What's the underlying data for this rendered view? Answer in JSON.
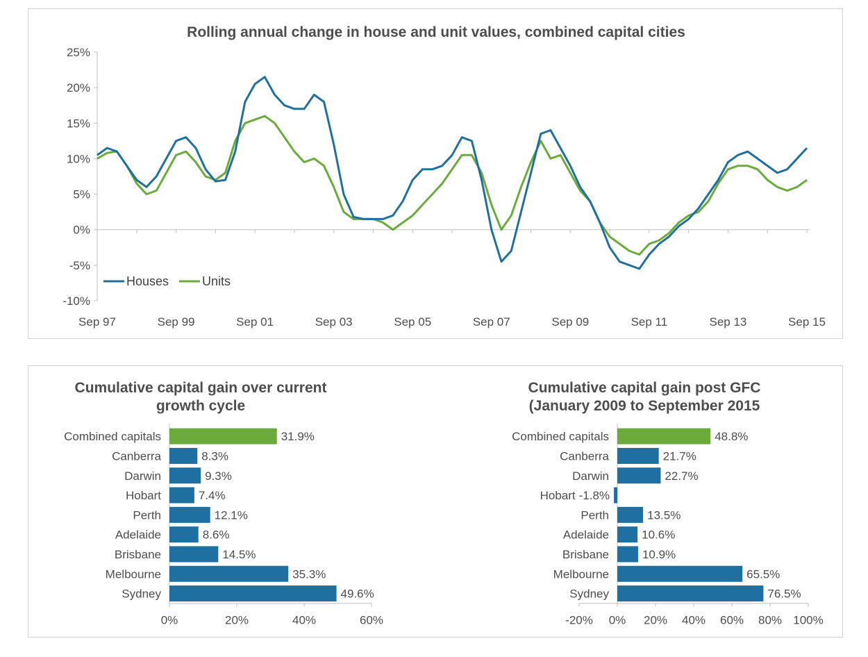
{
  "colors": {
    "houses": "#1f6fa0",
    "units": "#6aab3c",
    "bar": "#1f6fa0",
    "bar_highlight": "#6aab3c",
    "axis": "#bfbfbf"
  },
  "chart_data": [
    {
      "type": "line",
      "title": "Rolling annual change in house and unit values, combined capital cities",
      "xlabel": "",
      "ylabel": "",
      "x_tick_labels": [
        "Sep 97",
        "Sep 99",
        "Sep 01",
        "Sep 03",
        "Sep 05",
        "Sep 07",
        "Sep 09",
        "Sep 11",
        "Sep 13",
        "Sep 15"
      ],
      "y_tick_labels": [
        "25%",
        "20%",
        "15%",
        "10%",
        "5%",
        "0%",
        "-5%",
        "-10%"
      ],
      "ylim": [
        -10,
        25
      ],
      "xlim": [
        1997.75,
        2015.75
      ],
      "legend": "bottom-left",
      "grid": false,
      "series": [
        {
          "name": "Houses",
          "x": [
            1997.75,
            1998.0,
            1998.25,
            1998.5,
            1998.75,
            1999.0,
            1999.25,
            1999.5,
            1999.75,
            2000.0,
            2000.25,
            2000.5,
            2000.75,
            2001.0,
            2001.25,
            2001.5,
            2001.75,
            2002.0,
            2002.25,
            2002.5,
            2002.75,
            2003.0,
            2003.25,
            2003.5,
            2003.75,
            2004.0,
            2004.25,
            2004.5,
            2004.75,
            2005.0,
            2005.25,
            2005.5,
            2005.75,
            2006.0,
            2006.25,
            2006.5,
            2006.75,
            2007.0,
            2007.25,
            2007.5,
            2007.75,
            2008.0,
            2008.25,
            2008.5,
            2008.75,
            2009.0,
            2009.25,
            2009.5,
            2009.75,
            2010.0,
            2010.25,
            2010.5,
            2010.75,
            2011.0,
            2011.25,
            2011.5,
            2011.75,
            2012.0,
            2012.25,
            2012.5,
            2012.75,
            2013.0,
            2013.25,
            2013.5,
            2013.75,
            2014.0,
            2014.25,
            2014.5,
            2014.75,
            2015.0,
            2015.25,
            2015.5,
            2015.75
          ],
          "values": [
            10.5,
            11.5,
            11.0,
            9.0,
            7.0,
            6.0,
            7.5,
            10.0,
            12.5,
            13.0,
            11.5,
            8.5,
            6.8,
            7.0,
            11.0,
            18.0,
            20.5,
            21.5,
            19.0,
            17.5,
            17.0,
            17.0,
            19.0,
            18.0,
            12.0,
            5.0,
            1.8,
            1.5,
            1.5,
            1.5,
            2.0,
            4.0,
            7.0,
            8.5,
            8.5,
            9.0,
            10.5,
            13.0,
            12.5,
            7.0,
            0.0,
            -4.5,
            -3.0,
            2.5,
            8.0,
            13.5,
            14.0,
            11.5,
            9.0,
            6.0,
            4.0,
            1.0,
            -2.5,
            -4.5,
            -5.0,
            -5.5,
            -3.5,
            -2.0,
            -1.0,
            0.5,
            1.5,
            3.0,
            5.0,
            7.0,
            9.5,
            10.5,
            11.0,
            10.0,
            9.0,
            8.0,
            8.5,
            10.0,
            11.5
          ]
        },
        {
          "name": "Units",
          "x": [
            1997.75,
            1998.0,
            1998.25,
            1998.5,
            1998.75,
            1999.0,
            1999.25,
            1999.5,
            1999.75,
            2000.0,
            2000.25,
            2000.5,
            2000.75,
            2001.0,
            2001.25,
            2001.5,
            2001.75,
            2002.0,
            2002.25,
            2002.5,
            2002.75,
            2003.0,
            2003.25,
            2003.5,
            2003.75,
            2004.0,
            2004.25,
            2004.5,
            2004.75,
            2005.0,
            2005.25,
            2005.5,
            2005.75,
            2006.0,
            2006.25,
            2006.5,
            2006.75,
            2007.0,
            2007.25,
            2007.5,
            2007.75,
            2008.0,
            2008.25,
            2008.5,
            2008.75,
            2009.0,
            2009.25,
            2009.5,
            2009.75,
            2010.0,
            2010.25,
            2010.5,
            2010.75,
            2011.0,
            2011.25,
            2011.5,
            2011.75,
            2012.0,
            2012.25,
            2012.5,
            2012.75,
            2013.0,
            2013.25,
            2013.5,
            2013.75,
            2014.0,
            2014.25,
            2014.5,
            2014.75,
            2015.0,
            2015.25,
            2015.5,
            2015.75
          ],
          "values": [
            10.0,
            10.8,
            11.0,
            9.0,
            6.5,
            5.0,
            5.5,
            8.0,
            10.5,
            11.0,
            9.5,
            7.5,
            7.0,
            8.0,
            12.5,
            15.0,
            15.5,
            16.0,
            15.0,
            13.0,
            11.0,
            9.5,
            10.0,
            9.0,
            6.0,
            2.5,
            1.5,
            1.5,
            1.5,
            1.0,
            0.0,
            1.0,
            2.0,
            3.5,
            5.0,
            6.5,
            8.5,
            10.5,
            10.5,
            8.0,
            3.5,
            0.0,
            2.0,
            6.0,
            9.5,
            12.5,
            10.0,
            10.5,
            8.0,
            5.5,
            4.0,
            1.0,
            -1.0,
            -2.0,
            -3.0,
            -3.5,
            -2.0,
            -1.5,
            -0.5,
            1.0,
            2.0,
            2.5,
            4.0,
            6.5,
            8.5,
            9.0,
            9.0,
            8.5,
            7.0,
            6.0,
            5.5,
            6.0,
            7.0
          ]
        }
      ]
    },
    {
      "type": "bar",
      "orientation": "horizontal",
      "title": "Cumulative capital gain over current growth cycle",
      "categories": [
        "Combined capitals",
        "Canberra",
        "Darwin",
        "Hobart",
        "Perth",
        "Adelaide",
        "Brisbane",
        "Melbourne",
        "Sydney"
      ],
      "values": [
        31.9,
        8.3,
        9.3,
        7.4,
        12.1,
        8.6,
        14.5,
        35.3,
        49.6
      ],
      "data_labels": [
        "31.9%",
        "8.3%",
        "9.3%",
        "7.4%",
        "12.1%",
        "8.6%",
        "14.5%",
        "35.3%",
        "49.6%"
      ],
      "highlight": "Combined capitals",
      "xlim": [
        0,
        60
      ],
      "x_tick_labels": [
        "0%",
        "20%",
        "40%",
        "60%"
      ],
      "xlabel": "",
      "ylabel": ""
    },
    {
      "type": "bar",
      "orientation": "horizontal",
      "title": "Cumulative capital gain post GFC (January 2009 to September 2015",
      "categories": [
        "Combined capitals",
        "Canberra",
        "Darwin",
        "Hobart",
        "Perth",
        "Adelaide",
        "Brisbane",
        "Melbourne",
        "Sydney"
      ],
      "values": [
        48.8,
        21.7,
        22.7,
        -1.8,
        13.5,
        10.6,
        10.9,
        65.5,
        76.5
      ],
      "data_labels": [
        "48.8%",
        "21.7%",
        "22.7%",
        "-1.8%",
        "13.5%",
        "10.6%",
        "10.9%",
        "65.5%",
        "76.5%"
      ],
      "highlight": "Combined capitals",
      "xlim": [
        -20,
        100
      ],
      "x_tick_labels": [
        "-20%",
        "0%",
        "20%",
        "40%",
        "60%",
        "80%",
        "100%"
      ],
      "xlabel": "",
      "ylabel": ""
    }
  ]
}
